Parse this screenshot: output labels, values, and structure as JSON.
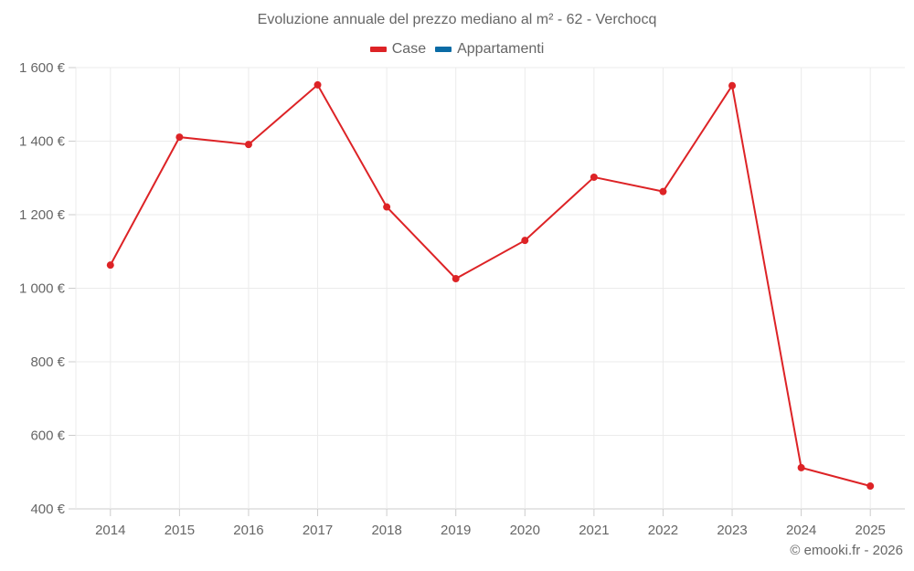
{
  "title": "Evoluzione annuale del prezzo mediano al m² - 62 - Verchocq",
  "legend": [
    {
      "label": "Case",
      "color": "#dd2326"
    },
    {
      "label": "Appartamenti",
      "color": "#0a6ba5"
    }
  ],
  "credit": "© emooki.fr - 2026",
  "chart_data": {
    "type": "line",
    "title": "Evoluzione annuale del prezzo mediano al m² - 62 - Verchocq",
    "xlabel": "",
    "ylabel": "",
    "categories": [
      "2014",
      "2015",
      "2016",
      "2017",
      "2018",
      "2019",
      "2020",
      "2021",
      "2022",
      "2023",
      "2024",
      "2025"
    ],
    "series": [
      {
        "name": "Case",
        "color": "#dd2326",
        "values": [
          1063,
          1411,
          1391,
          1553,
          1221,
          1026,
          1130,
          1302,
          1263,
          1551,
          512,
          462
        ]
      },
      {
        "name": "Appartamenti",
        "color": "#0a6ba5",
        "values": []
      }
    ],
    "ylim": [
      400,
      1600
    ],
    "yticks": [
      400,
      600,
      800,
      1000,
      1200,
      1400,
      1600
    ],
    "ytick_labels": [
      "400 €",
      "600 €",
      "800 €",
      "1 000 €",
      "1 200 €",
      "1 400 €",
      "1 600 €"
    ],
    "grid": true,
    "legend_position": "top"
  }
}
